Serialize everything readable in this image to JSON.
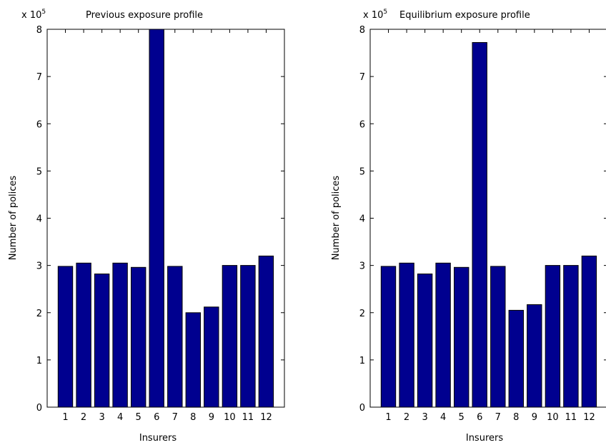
{
  "chart_data": [
    {
      "type": "bar",
      "title": "Previous exposure profile",
      "xlabel": "Insurers",
      "ylabel": "Number of polices",
      "scale_label": "x 10",
      "scale_exponent": "5",
      "ylim": [
        0,
        8
      ],
      "yticks": [
        "0",
        "1",
        "2",
        "3",
        "4",
        "5",
        "6",
        "7",
        "8"
      ],
      "categories": [
        "1",
        "2",
        "3",
        "4",
        "5",
        "6",
        "7",
        "8",
        "9",
        "10",
        "11",
        "12"
      ],
      "values": [
        2.98,
        3.05,
        2.82,
        3.05,
        2.96,
        8.0,
        2.98,
        2.0,
        2.12,
        3.0,
        3.0,
        3.2
      ],
      "bar_color": "#00008f",
      "grid": false
    },
    {
      "type": "bar",
      "title": "Equilibrium exposure profile",
      "xlabel": "Insurers",
      "ylabel": "Number of polices",
      "scale_label": "x 10",
      "scale_exponent": "5",
      "ylim": [
        0,
        8
      ],
      "yticks": [
        "0",
        "1",
        "2",
        "3",
        "4",
        "5",
        "6",
        "7",
        "8"
      ],
      "categories": [
        "1",
        "2",
        "3",
        "4",
        "5",
        "6",
        "7",
        "8",
        "9",
        "10",
        "11",
        "12"
      ],
      "values": [
        2.98,
        3.05,
        2.82,
        3.05,
        2.96,
        7.72,
        2.98,
        2.05,
        2.17,
        3.0,
        3.0,
        3.2
      ],
      "bar_color": "#00008f",
      "grid": false
    }
  ]
}
